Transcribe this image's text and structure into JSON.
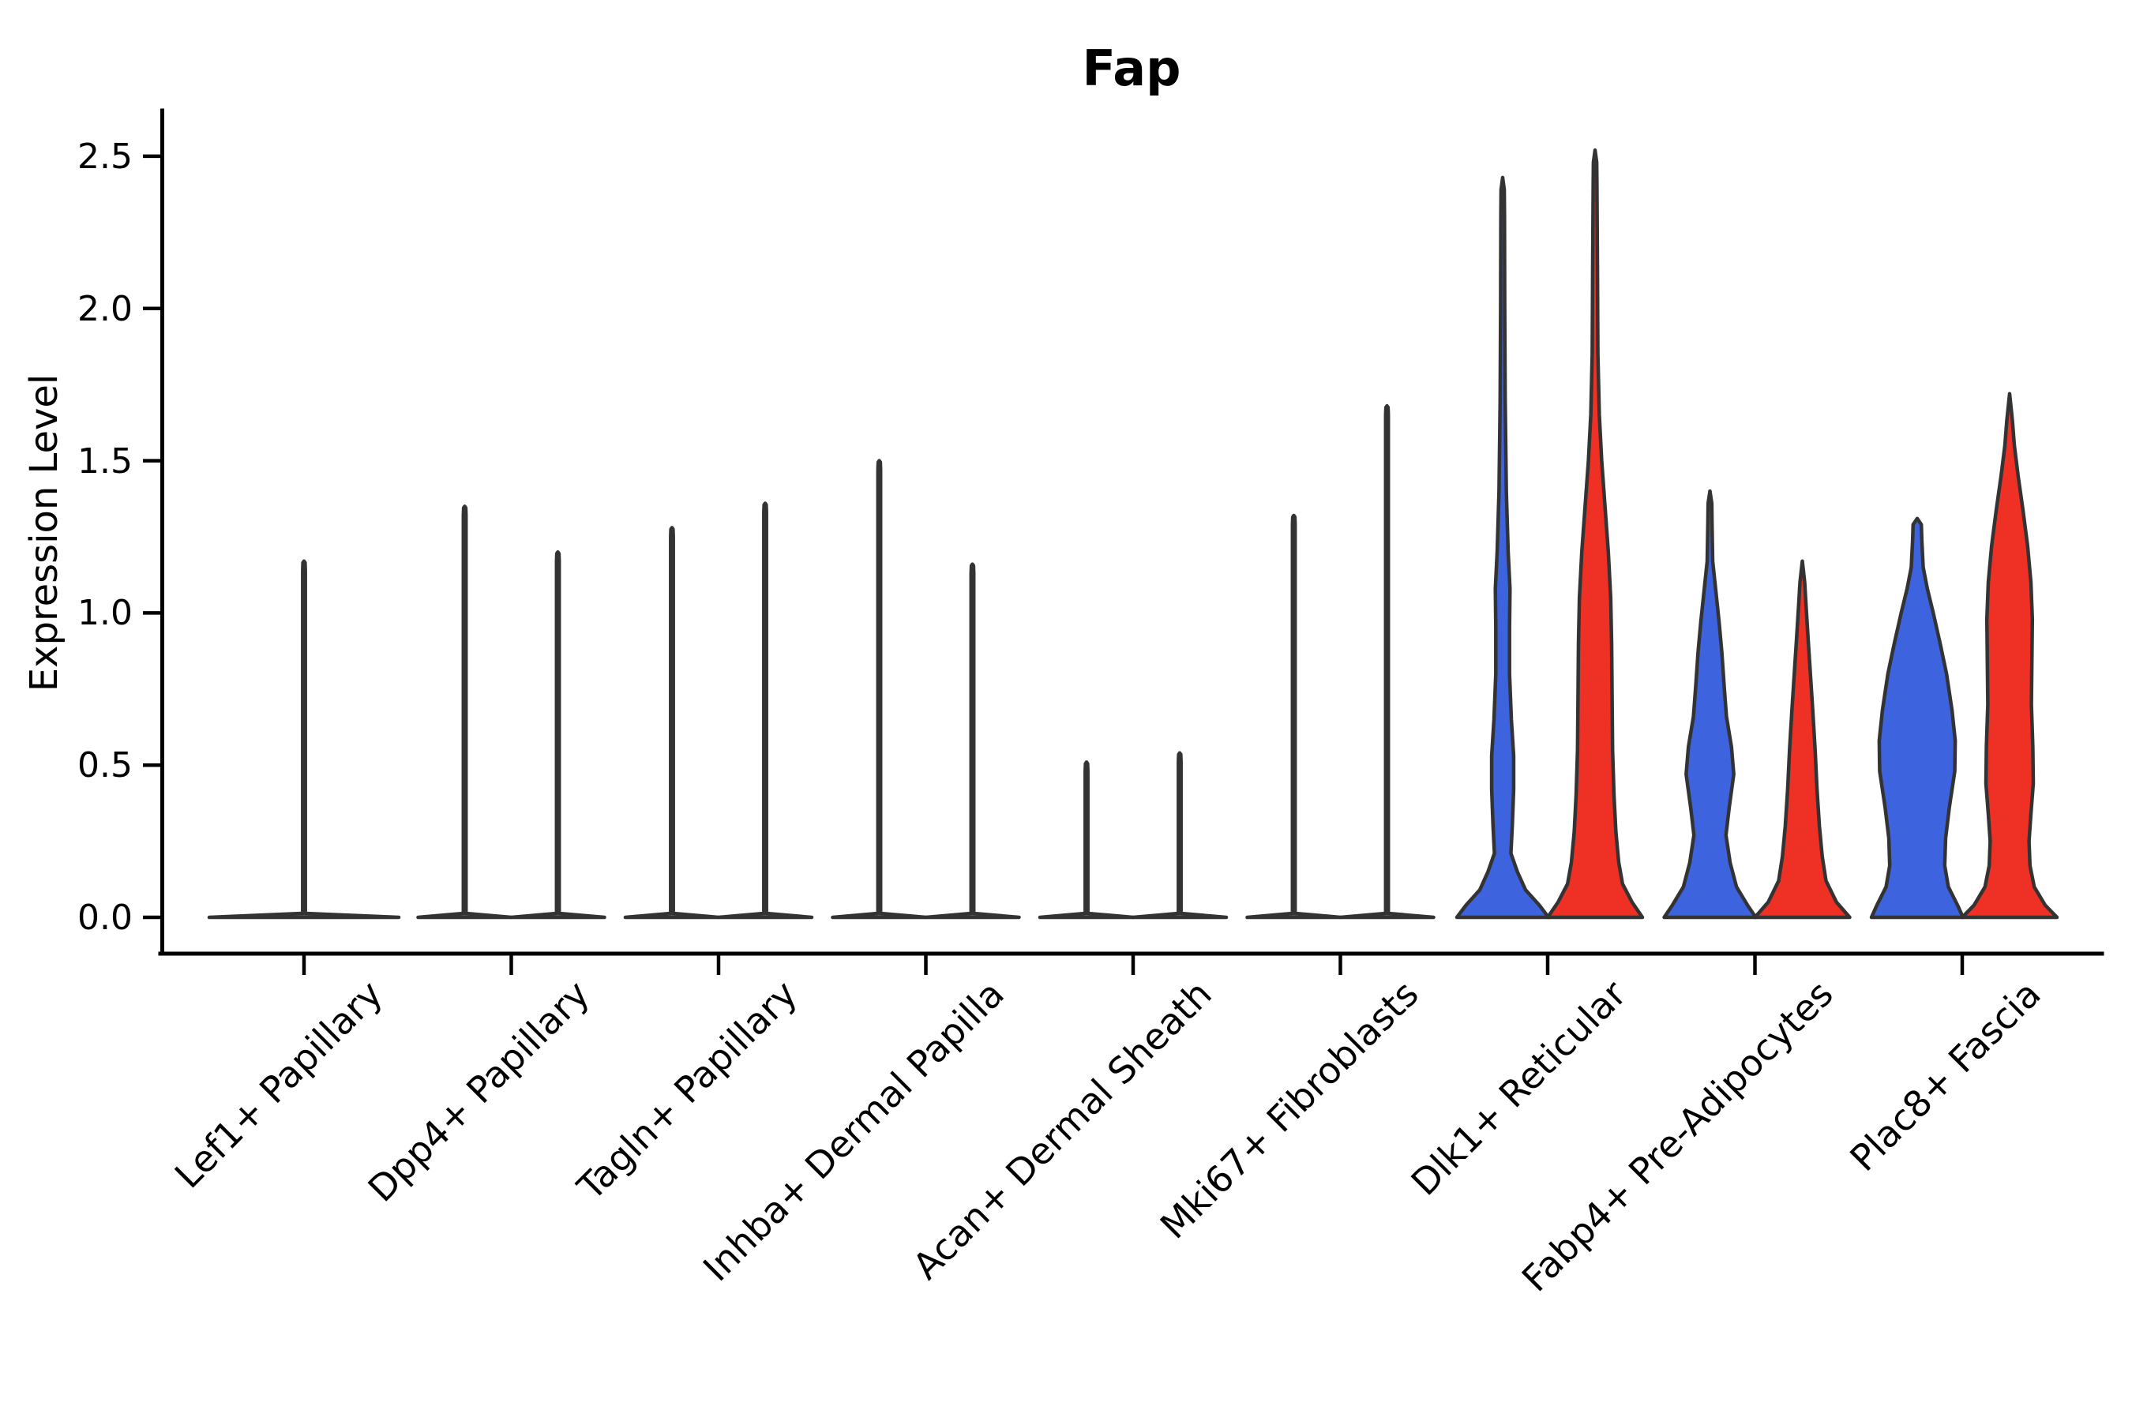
{
  "title": "Fap",
  "y_axis": {
    "label": "Expression Level",
    "ticks": [
      "0.0",
      "0.5",
      "1.0",
      "1.5",
      "2.0",
      "2.5"
    ]
  },
  "colors": {
    "blue": "#3D63DE",
    "red": "#EE3124",
    "edge": "#333333",
    "axis": "#000000"
  },
  "chart_data": {
    "type": "violin",
    "title": "Fap",
    "ylabel": "Expression Level",
    "xlabel": "",
    "ylim": [
      0,
      2.6
    ],
    "yticks": [
      0.0,
      0.5,
      1.0,
      1.5,
      2.0,
      2.5
    ],
    "grid": false,
    "legend": "none",
    "split_groups": [
      "blue",
      "red"
    ],
    "categories": [
      {
        "label": "Lef1+ Papillary",
        "violins": [
          {
            "color_key": "blue",
            "side": "center",
            "offset": 0,
            "half_width": 120,
            "shape": "spike",
            "max_expression": 1.17
          }
        ]
      },
      {
        "label": "Dpp4+ Papillary",
        "violins": [
          {
            "color_key": "blue",
            "side": "left",
            "offset": -59,
            "half_width": 59,
            "shape": "spike",
            "max_expression": 1.35
          },
          {
            "color_key": "red",
            "side": "right",
            "offset": 59,
            "half_width": 59,
            "shape": "spike",
            "max_expression": 1.2
          }
        ]
      },
      {
        "label": "Tagln+ Papillary",
        "violins": [
          {
            "color_key": "blue",
            "side": "left",
            "offset": -59,
            "half_width": 59,
            "shape": "spike",
            "max_expression": 1.28
          },
          {
            "color_key": "red",
            "side": "right",
            "offset": 59,
            "half_width": 59,
            "shape": "spike",
            "max_expression": 1.36
          }
        ]
      },
      {
        "label": "Inhba+ Dermal Papilla",
        "violins": [
          {
            "color_key": "blue",
            "side": "left",
            "offset": -59,
            "half_width": 59,
            "shape": "spike",
            "max_expression": 1.5
          },
          {
            "color_key": "red",
            "side": "right",
            "offset": 59,
            "half_width": 59,
            "shape": "spike",
            "max_expression": 1.16
          }
        ]
      },
      {
        "label": "Acan+ Dermal Sheath",
        "violins": [
          {
            "color_key": "blue",
            "side": "left",
            "offset": -59,
            "half_width": 59,
            "shape": "spike",
            "max_expression": 0.51
          },
          {
            "color_key": "red",
            "side": "right",
            "offset": 59,
            "half_width": 59,
            "shape": "spike",
            "max_expression": 0.54
          }
        ]
      },
      {
        "label": "Mki67+ Fibroblasts",
        "violins": [
          {
            "color_key": "blue",
            "side": "left",
            "offset": -59,
            "half_width": 59,
            "shape": "spike",
            "max_expression": 1.32
          },
          {
            "color_key": "red",
            "side": "right",
            "offset": 59,
            "half_width": 59,
            "shape": "spike",
            "max_expression": 1.68
          }
        ]
      },
      {
        "label": "Dlk1+ Reticular",
        "violins": [
          {
            "color_key": "blue",
            "side": "left",
            "offset": -57,
            "half_width": 58,
            "shape": "density",
            "max_expression": 2.43,
            "profile": [
              [
                0,
                1.0
              ],
              [
                0.04,
                0.8
              ],
              [
                0.09,
                0.5
              ],
              [
                0.15,
                0.32
              ],
              [
                0.21,
                0.18
              ],
              [
                0.3,
                0.21
              ],
              [
                0.42,
                0.24
              ],
              [
                0.53,
                0.24
              ],
              [
                0.65,
                0.19
              ],
              [
                0.8,
                0.15
              ],
              [
                0.95,
                0.15
              ],
              [
                1.08,
                0.16
              ],
              [
                1.2,
                0.12
              ],
              [
                1.4,
                0.08
              ],
              [
                1.7,
                0.055
              ],
              [
                2.0,
                0.045
              ],
              [
                2.3,
                0.04
              ],
              [
                2.39,
                0.035
              ],
              [
                2.43,
                0
              ]
            ]
          },
          {
            "color_key": "red",
            "side": "right",
            "offset": 60,
            "half_width": 60,
            "shape": "density",
            "max_expression": 2.52,
            "profile": [
              [
                0,
                1.0
              ],
              [
                0.05,
                0.78
              ],
              [
                0.11,
                0.58
              ],
              [
                0.18,
                0.5
              ],
              [
                0.28,
                0.44
              ],
              [
                0.4,
                0.4
              ],
              [
                0.55,
                0.37
              ],
              [
                0.72,
                0.36
              ],
              [
                0.9,
                0.35
              ],
              [
                1.05,
                0.33
              ],
              [
                1.2,
                0.28
              ],
              [
                1.35,
                0.21
              ],
              [
                1.5,
                0.14
              ],
              [
                1.65,
                0.09
              ],
              [
                1.85,
                0.06
              ],
              [
                2.15,
                0.05
              ],
              [
                2.4,
                0.04
              ],
              [
                2.48,
                0.035
              ],
              [
                2.52,
                0
              ]
            ]
          }
        ]
      },
      {
        "label": "Fabp4+ Pre-Adipocytes",
        "violins": [
          {
            "color_key": "blue",
            "side": "left",
            "offset": -57,
            "half_width": 58,
            "shape": "density",
            "max_expression": 1.4,
            "profile": [
              [
                0,
                1.0
              ],
              [
                0.04,
                0.82
              ],
              [
                0.1,
                0.58
              ],
              [
                0.18,
                0.44
              ],
              [
                0.27,
                0.35
              ],
              [
                0.36,
                0.42
              ],
              [
                0.47,
                0.52
              ],
              [
                0.56,
                0.47
              ],
              [
                0.66,
                0.36
              ],
              [
                0.76,
                0.31
              ],
              [
                0.87,
                0.26
              ],
              [
                0.97,
                0.2
              ],
              [
                1.07,
                0.13
              ],
              [
                1.17,
                0.06
              ],
              [
                1.3,
                0.045
              ],
              [
                1.36,
                0.04
              ],
              [
                1.4,
                0
              ]
            ]
          },
          {
            "color_key": "red",
            "side": "right",
            "offset": 60,
            "half_width": 60,
            "shape": "density",
            "max_expression": 1.17,
            "profile": [
              [
                0,
                1.0
              ],
              [
                0.05,
                0.72
              ],
              [
                0.12,
                0.5
              ],
              [
                0.2,
                0.42
              ],
              [
                0.3,
                0.36
              ],
              [
                0.42,
                0.31
              ],
              [
                0.55,
                0.27
              ],
              [
                0.68,
                0.22
              ],
              [
                0.8,
                0.17
              ],
              [
                0.92,
                0.12
              ],
              [
                1.02,
                0.08
              ],
              [
                1.1,
                0.05
              ],
              [
                1.17,
                0
              ]
            ]
          }
        ]
      },
      {
        "label": "Plac8+ Fascia",
        "violins": [
          {
            "color_key": "blue",
            "side": "left",
            "offset": -57,
            "half_width": 58,
            "shape": "density",
            "max_expression": 1.31,
            "profile": [
              [
                0,
                1.0
              ],
              [
                0.04,
                0.88
              ],
              [
                0.1,
                0.68
              ],
              [
                0.17,
                0.6
              ],
              [
                0.26,
                0.62
              ],
              [
                0.36,
                0.7
              ],
              [
                0.48,
                0.82
              ],
              [
                0.58,
                0.83
              ],
              [
                0.68,
                0.76
              ],
              [
                0.8,
                0.64
              ],
              [
                0.9,
                0.5
              ],
              [
                1.0,
                0.35
              ],
              [
                1.08,
                0.22
              ],
              [
                1.15,
                0.13
              ],
              [
                1.24,
                0.1
              ],
              [
                1.29,
                0.09
              ],
              [
                1.31,
                0
              ]
            ]
          },
          {
            "color_key": "red",
            "side": "right",
            "offset": 60,
            "half_width": 60,
            "shape": "density",
            "max_expression": 1.72,
            "profile": [
              [
                0,
                1.0
              ],
              [
                0.04,
                0.75
              ],
              [
                0.1,
                0.52
              ],
              [
                0.17,
                0.43
              ],
              [
                0.25,
                0.41
              ],
              [
                0.34,
                0.45
              ],
              [
                0.44,
                0.5
              ],
              [
                0.56,
                0.49
              ],
              [
                0.7,
                0.46
              ],
              [
                0.84,
                0.47
              ],
              [
                0.98,
                0.48
              ],
              [
                1.1,
                0.45
              ],
              [
                1.22,
                0.38
              ],
              [
                1.34,
                0.28
              ],
              [
                1.45,
                0.18
              ],
              [
                1.55,
                0.1
              ],
              [
                1.63,
                0.06
              ],
              [
                1.72,
                0
              ]
            ]
          }
        ]
      }
    ]
  }
}
